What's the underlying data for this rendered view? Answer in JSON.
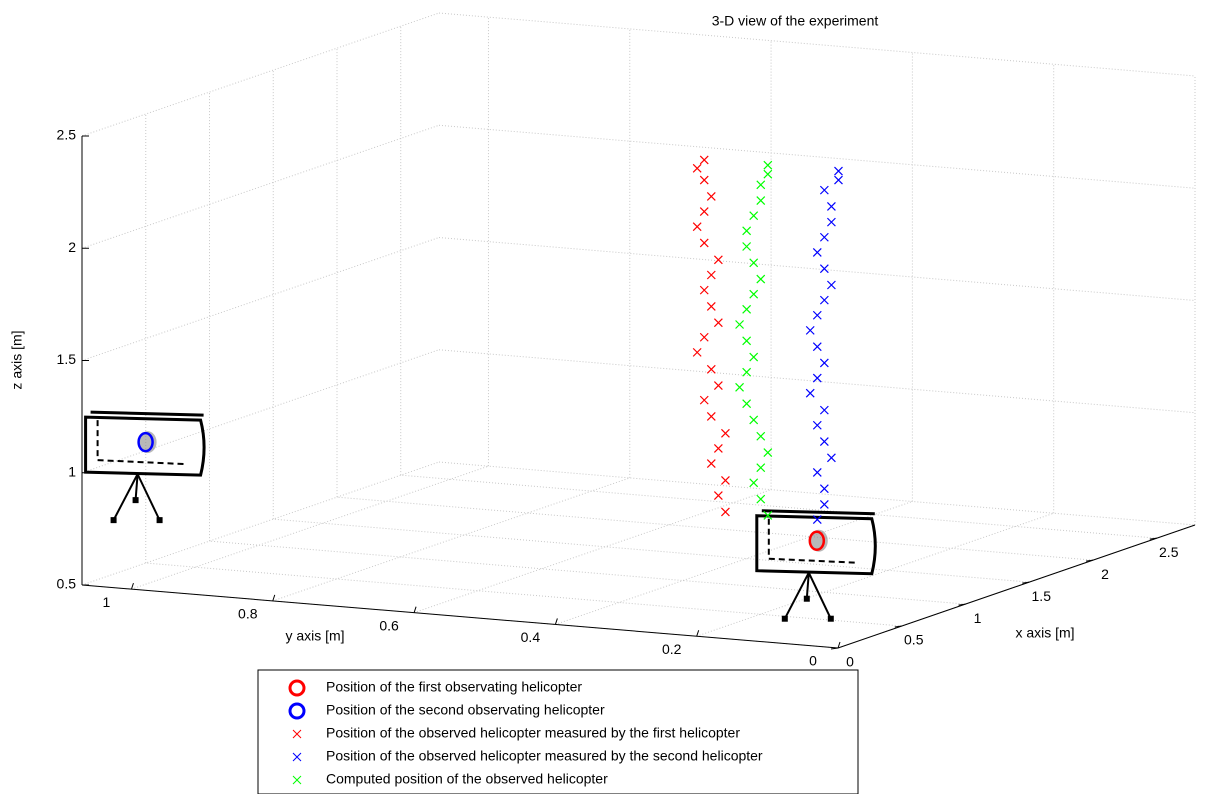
{
  "chart_data": {
    "type": "scatter3d",
    "title": "3-D view of the experiment",
    "xlabel": "x axis [m]",
    "ylabel": "y axis [m]",
    "zlabel": "z axis [m]",
    "xlim": [
      0,
      2.8
    ],
    "ylim": [
      0,
      1.07
    ],
    "zlim": [
      0.5,
      2.5
    ],
    "xticks": [
      0,
      0.5,
      1,
      1.5,
      2,
      2.5
    ],
    "yticks": [
      0,
      0.2,
      0.4,
      0.6,
      0.8,
      1
    ],
    "zticks": [
      0.5,
      1,
      1.5,
      2,
      2.5
    ],
    "grid": true,
    "legend": "bottom",
    "series": [
      {
        "name": "Position of the first observating helicopter",
        "color": "#ff0000",
        "marker": "o",
        "x": [
          0
        ],
        "y": [
          0.03
        ],
        "z": [
          0.97
        ]
      },
      {
        "name": "Position of the second observating helicopter",
        "color": "#0000ff",
        "marker": "o",
        "x": [
          0
        ],
        "y": [
          0.98
        ],
        "z": [
          1.16
        ]
      },
      {
        "name": "Position of the observed helicopter measured by the first helicopter",
        "color": "#ff0000",
        "marker": "x",
        "x": [
          1.5,
          1.5,
          1.5,
          1.5,
          1.5,
          1.5,
          1.5,
          1.5,
          1.5,
          1.5,
          1.5,
          1.5,
          1.5,
          1.5,
          1.5,
          1.5,
          1.5,
          1.5,
          1.5,
          1.5,
          1.5,
          1.5,
          1.5,
          1.5
        ],
        "y": [
          0.43,
          0.44,
          0.43,
          0.45,
          0.44,
          0.43,
          0.45,
          0.46,
          0.44,
          0.45,
          0.47,
          0.46,
          0.44,
          0.45,
          0.46,
          0.45,
          0.44,
          0.46,
          0.47,
          0.46,
          0.45,
          0.46,
          0.47,
          0.46
        ],
        "z": [
          0.7,
          0.77,
          0.84,
          0.91,
          0.98,
          1.05,
          1.12,
          1.19,
          1.26,
          1.33,
          1.4,
          1.47,
          1.54,
          1.61,
          1.68,
          1.75,
          1.82,
          1.89,
          1.96,
          2.03,
          2.1,
          2.17,
          2.22,
          2.26
        ]
      },
      {
        "name": "Position of the observed helicopter measured by the second helicopter",
        "color": "#0000ff",
        "marker": "x",
        "x": [
          1.5,
          1.5,
          1.5,
          1.5,
          1.5,
          1.5,
          1.5,
          1.5,
          1.5,
          1.5,
          1.5,
          1.5,
          1.5,
          1.5,
          1.5,
          1.5,
          1.5,
          1.5,
          1.5,
          1.5,
          1.5,
          1.5,
          1.5,
          1.5
        ],
        "y": [
          0.3,
          0.29,
          0.29,
          0.3,
          0.28,
          0.29,
          0.3,
          0.29,
          0.31,
          0.3,
          0.29,
          0.3,
          0.31,
          0.3,
          0.29,
          0.28,
          0.29,
          0.3,
          0.29,
          0.28,
          0.28,
          0.29,
          0.27,
          0.27
        ],
        "z": [
          0.7,
          0.77,
          0.84,
          0.91,
          0.98,
          1.05,
          1.12,
          1.19,
          1.26,
          1.33,
          1.4,
          1.47,
          1.54,
          1.61,
          1.68,
          1.75,
          1.82,
          1.89,
          1.96,
          2.03,
          2.1,
          2.17,
          2.22,
          2.26
        ]
      },
      {
        "name": "Computed position of the observed helicopter",
        "color": "#00ff00",
        "marker": "x",
        "x": [
          1.5,
          1.5,
          1.5,
          1.5,
          1.5,
          1.5,
          1.5,
          1.5,
          1.5,
          1.5,
          1.5,
          1.5,
          1.5,
          1.5,
          1.5,
          1.5,
          1.5,
          1.5,
          1.5,
          1.5,
          1.5,
          1.5,
          1.5,
          1.5
        ],
        "y": [
          0.37,
          0.38,
          0.39,
          0.38,
          0.37,
          0.38,
          0.39,
          0.4,
          0.41,
          0.4,
          0.39,
          0.4,
          0.41,
          0.4,
          0.39,
          0.38,
          0.39,
          0.4,
          0.4,
          0.39,
          0.38,
          0.38,
          0.37,
          0.37
        ],
        "z": [
          0.7,
          0.77,
          0.84,
          0.91,
          0.98,
          1.05,
          1.12,
          1.19,
          1.26,
          1.33,
          1.4,
          1.47,
          1.54,
          1.61,
          1.68,
          1.75,
          1.82,
          1.89,
          1.96,
          2.03,
          2.1,
          2.17,
          2.22,
          2.26
        ]
      }
    ]
  }
}
